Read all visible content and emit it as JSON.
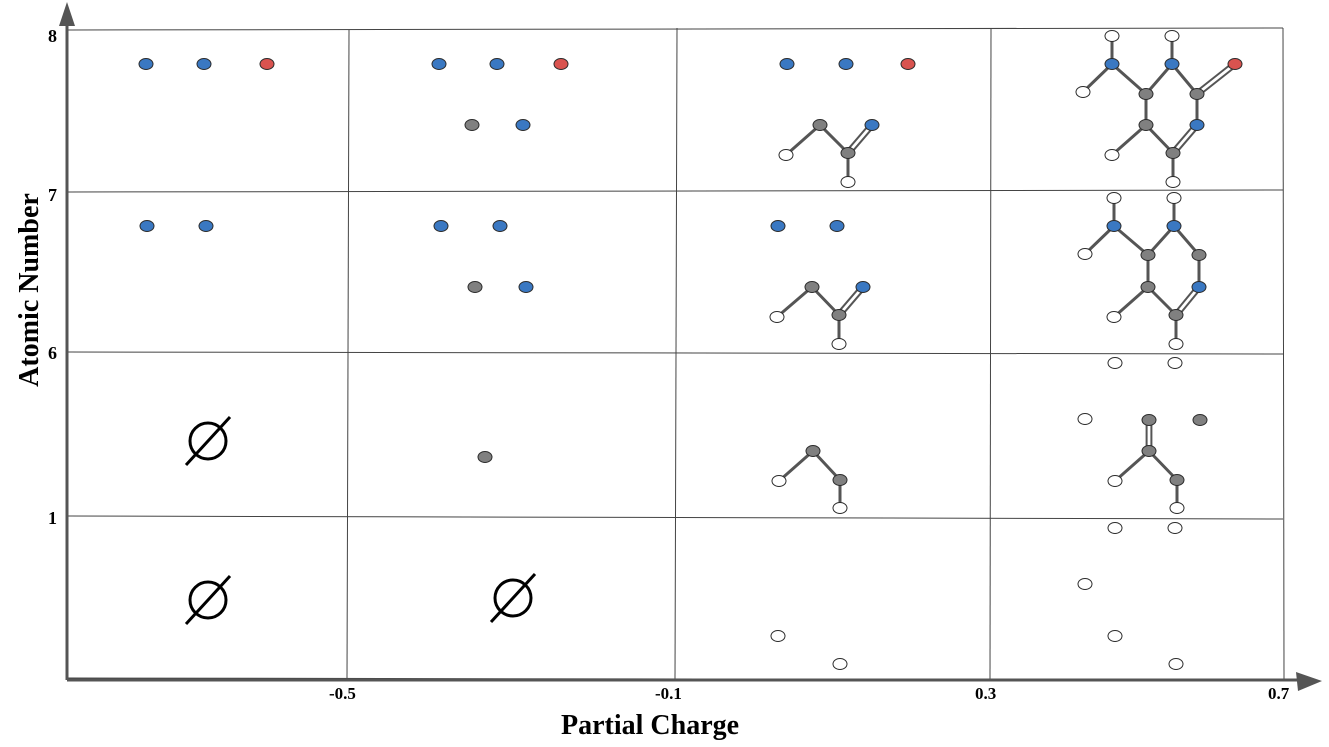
{
  "axes": {
    "x_label": "Partial Charge",
    "y_label": "Atomic Number",
    "x_ticks": [
      "-0.5",
      "-0.1",
      "0.3",
      "0.7"
    ],
    "y_ticks": [
      "8",
      "7",
      "6",
      "1"
    ]
  },
  "grid": {
    "rows": 4,
    "cols": 4,
    "empty_symbol": "∅"
  },
  "colors": {
    "blue_atom": "#3a78c2",
    "red_atom": "#d9534f",
    "gray_atom": "#808080",
    "white_atom": "#ffffff",
    "bond": "#555555",
    "grid_line": "#444444",
    "axis": "#555555"
  },
  "cells": [
    {
      "row": 0,
      "col": 0,
      "empty": false
    },
    {
      "row": 0,
      "col": 1,
      "empty": false
    },
    {
      "row": 0,
      "col": 2,
      "empty": false
    },
    {
      "row": 0,
      "col": 3,
      "empty": false
    },
    {
      "row": 1,
      "col": 0,
      "empty": false
    },
    {
      "row": 1,
      "col": 1,
      "empty": false
    },
    {
      "row": 1,
      "col": 2,
      "empty": false
    },
    {
      "row": 1,
      "col": 3,
      "empty": false
    },
    {
      "row": 2,
      "col": 0,
      "empty": true
    },
    {
      "row": 2,
      "col": 1,
      "empty": false
    },
    {
      "row": 2,
      "col": 2,
      "empty": false
    },
    {
      "row": 2,
      "col": 3,
      "empty": false
    },
    {
      "row": 3,
      "col": 0,
      "empty": true
    },
    {
      "row": 3,
      "col": 1,
      "empty": true
    },
    {
      "row": 3,
      "col": 2,
      "empty": false
    },
    {
      "row": 3,
      "col": 3,
      "empty": false
    }
  ]
}
